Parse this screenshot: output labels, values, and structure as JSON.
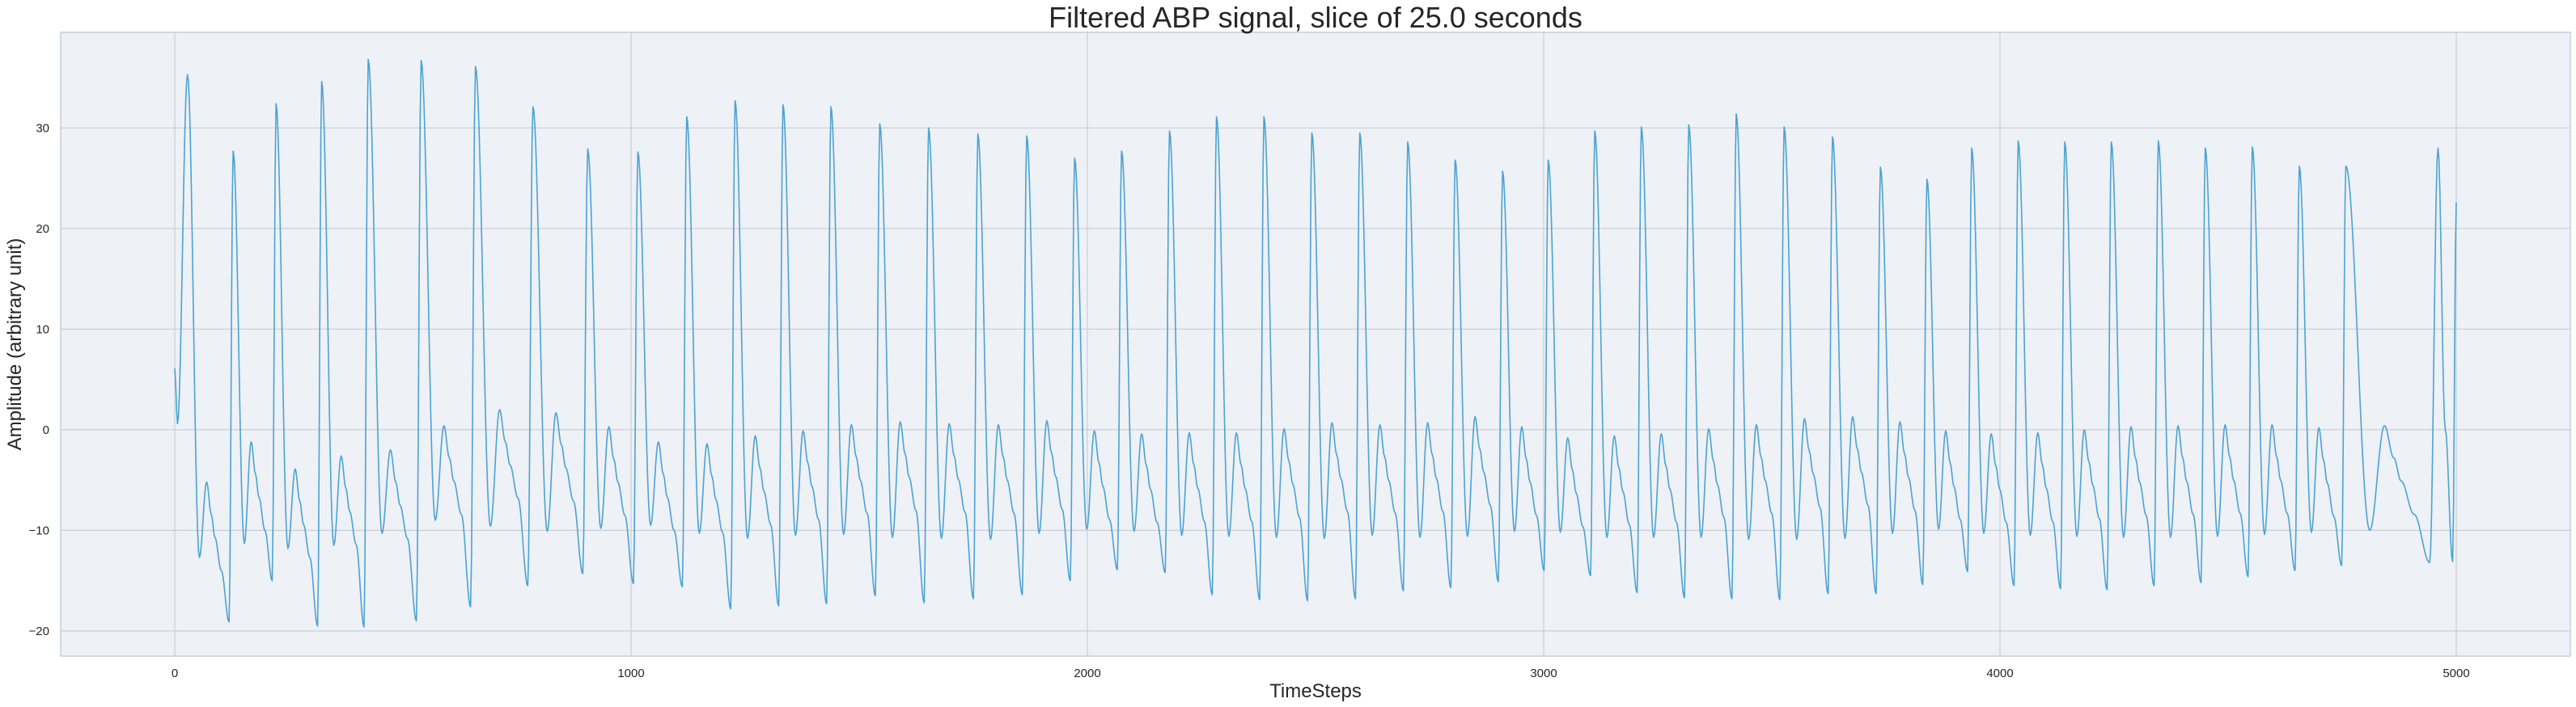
{
  "chart_data": {
    "type": "line",
    "title": "Filtered ABP signal, slice of 25.0 seconds",
    "xlabel": "TimeSteps",
    "ylabel": "Amplitude (arbitrary unit)",
    "xlim": [
      -250,
      5250
    ],
    "ylim": [
      -22.5,
      39.5
    ],
    "xticks": [
      0,
      1000,
      2000,
      3000,
      4000,
      5000
    ],
    "xtick_labels": [
      "0",
      "1000",
      "2000",
      "3000",
      "4000",
      "5000"
    ],
    "yticks": [
      -20,
      -10,
      0,
      10,
      20,
      30
    ],
    "ytick_labels": [
      "−20",
      "−10",
      "0",
      "10",
      "20",
      "30"
    ],
    "grid": true,
    "legend": "none",
    "colors": {
      "line": "#4ba3d4",
      "plot_background": "#eef1f6",
      "grid": "#c9ced6",
      "axes_edge": "#c9ced6"
    },
    "series": [
      {
        "x_start": 0,
        "x_end": 5000,
        "start_value": 6.1,
        "end_value": 22.6,
        "beats": [
          {
            "t": 28,
            "peak": 35.3,
            "trough": -12.7,
            "notch": -5.2,
            "diastolic_min": -19.1
          },
          {
            "t": 128,
            "peak": 27.7,
            "trough": -11.3,
            "notch": -1.2,
            "diastolic_min": -15.0
          },
          {
            "t": 222,
            "peak": 32.4,
            "trough": -11.8,
            "notch": -3.9,
            "diastolic_min": -19.5
          },
          {
            "t": 322,
            "peak": 34.6,
            "trough": -11.5,
            "notch": -2.6,
            "diastolic_min": -19.6
          },
          {
            "t": 424,
            "peak": 36.8,
            "trough": -10.3,
            "notch": -2.0,
            "diastolic_min": -19.0
          },
          {
            "t": 540,
            "peak": 36.7,
            "trough": -9.0,
            "notch": 0.4,
            "diastolic_min": -17.6
          },
          {
            "t": 659,
            "peak": 36.1,
            "trough": -9.6,
            "notch": 2.0,
            "diastolic_min": -15.5
          },
          {
            "t": 785,
            "peak": 32.1,
            "trough": -10.1,
            "notch": 1.7,
            "diastolic_min": -14.3
          },
          {
            "t": 905,
            "peak": 27.9,
            "trough": -9.8,
            "notch": 0.3,
            "diastolic_min": -15.3
          },
          {
            "t": 1015,
            "peak": 27.6,
            "trough": -9.5,
            "notch": -1.2,
            "diastolic_min": -15.6
          },
          {
            "t": 1122,
            "peak": 31.1,
            "trough": -10.3,
            "notch": -1.4,
            "diastolic_min": -17.8
          },
          {
            "t": 1228,
            "peak": 32.7,
            "trough": -10.8,
            "notch": -0.6,
            "diastolic_min": -17.5
          },
          {
            "t": 1333,
            "peak": 32.3,
            "trough": -10.5,
            "notch": -0.1,
            "diastolic_min": -17.3
          },
          {
            "t": 1438,
            "peak": 32.1,
            "trough": -10.4,
            "notch": 0.5,
            "diastolic_min": -16.5
          },
          {
            "t": 1545,
            "peak": 30.4,
            "trough": -10.7,
            "notch": 0.8,
            "diastolic_min": -17.2
          },
          {
            "t": 1652,
            "peak": 30.0,
            "trough": -10.8,
            "notch": 0.6,
            "diastolic_min": -16.8
          },
          {
            "t": 1760,
            "peak": 29.4,
            "trough": -10.9,
            "notch": 0.5,
            "diastolic_min": -16.4
          },
          {
            "t": 1867,
            "peak": 29.2,
            "trough": -10.3,
            "notch": 0.9,
            "diastolic_min": -15.0
          },
          {
            "t": 1972,
            "peak": 27.0,
            "trough": -9.9,
            "notch": -0.1,
            "diastolic_min": -13.9
          },
          {
            "t": 2075,
            "peak": 27.7,
            "trough": -10.1,
            "notch": -0.4,
            "diastolic_min": -14.2
          },
          {
            "t": 2180,
            "peak": 29.7,
            "trough": -10.5,
            "notch": -0.3,
            "diastolic_min": -16.4
          },
          {
            "t": 2283,
            "peak": 31.1,
            "trough": -10.6,
            "notch": -0.3,
            "diastolic_min": -16.9
          },
          {
            "t": 2387,
            "peak": 31.1,
            "trough": -10.7,
            "notch": 0.1,
            "diastolic_min": -17.0
          },
          {
            "t": 2492,
            "peak": 29.5,
            "trough": -10.8,
            "notch": 0.7,
            "diastolic_min": -16.8
          },
          {
            "t": 2597,
            "peak": 29.5,
            "trough": -10.5,
            "notch": 0.5,
            "diastolic_min": -16.0
          },
          {
            "t": 2702,
            "peak": 28.6,
            "trough": -10.7,
            "notch": 0.7,
            "diastolic_min": -15.7
          },
          {
            "t": 2806,
            "peak": 26.8,
            "trough": -10.6,
            "notch": 1.3,
            "diastolic_min": -15.1
          },
          {
            "t": 2910,
            "peak": 25.7,
            "trough": -10.1,
            "notch": 0.3,
            "diastolic_min": -14.0
          },
          {
            "t": 3010,
            "peak": 26.8,
            "trough": -10.2,
            "notch": -0.8,
            "diastolic_min": -14.5
          },
          {
            "t": 3112,
            "peak": 29.7,
            "trough": -10.7,
            "notch": -0.6,
            "diastolic_min": -16.2
          },
          {
            "t": 3214,
            "peak": 30.1,
            "trough": -10.7,
            "notch": -0.4,
            "diastolic_min": -16.7
          },
          {
            "t": 3318,
            "peak": 30.3,
            "trough": -10.7,
            "notch": 0.1,
            "diastolic_min": -16.8
          },
          {
            "t": 3422,
            "peak": 31.4,
            "trough": -10.9,
            "notch": 0.5,
            "diastolic_min": -16.9
          },
          {
            "t": 3527,
            "peak": 30.1,
            "trough": -10.9,
            "notch": 1.1,
            "diastolic_min": -16.3
          },
          {
            "t": 3633,
            "peak": 29.1,
            "trough": -10.8,
            "notch": 1.3,
            "diastolic_min": -16.3
          },
          {
            "t": 3738,
            "peak": 26.1,
            "trough": -10.3,
            "notch": 0.8,
            "diastolic_min": -15.4
          },
          {
            "t": 3840,
            "peak": 24.9,
            "trough": -9.9,
            "notch": -0.1,
            "diastolic_min": -14.1
          },
          {
            "t": 3938,
            "peak": 28.0,
            "trough": -10.3,
            "notch": -0.4,
            "diastolic_min": -15.5
          },
          {
            "t": 4040,
            "peak": 28.7,
            "trough": -10.5,
            "notch": -0.3,
            "diastolic_min": -15.8
          },
          {
            "t": 4142,
            "peak": 28.6,
            "trough": -10.6,
            "notch": 0.0,
            "diastolic_min": -15.9
          },
          {
            "t": 4244,
            "peak": 28.6,
            "trough": -10.7,
            "notch": 0.3,
            "diastolic_min": -15.5
          },
          {
            "t": 4347,
            "peak": 28.7,
            "trough": -10.7,
            "notch": 0.4,
            "diastolic_min": -15.2
          },
          {
            "t": 4450,
            "peak": 28.0,
            "trough": -10.6,
            "notch": 0.5,
            "diastolic_min": -14.6
          },
          {
            "t": 4553,
            "peak": 28.1,
            "trough": -10.4,
            "notch": 0.5,
            "diastolic_min": -14.0
          },
          {
            "t": 4656,
            "peak": 26.2,
            "trough": -10.2,
            "notch": 0.2,
            "diastolic_min": -13.5
          },
          {
            "t": 4758,
            "peak": 26.2,
            "trough": -10.0,
            "notch": 0.4,
            "diastolic_min": -13.2
          }
        ]
      }
    ]
  }
}
